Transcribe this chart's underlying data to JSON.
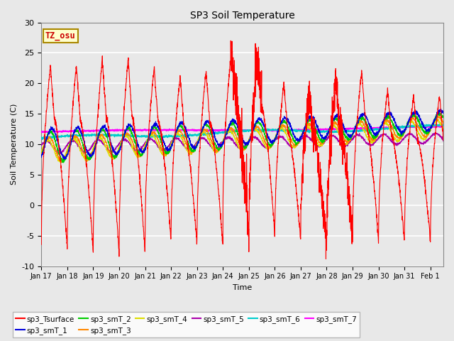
{
  "title": "SP3 Soil Temperature",
  "ylabel": "Soil Temperature (C)",
  "xlabel": "Time",
  "ylim": [
    -10,
    30
  ],
  "yticks": [
    -10,
    -5,
    0,
    5,
    10,
    15,
    20,
    25,
    30
  ],
  "xtick_labels": [
    "Jan 17",
    "Jan 18",
    "Jan 19",
    "Jan 20",
    "Jan 21",
    "Jan 22",
    "Jan 23",
    "Jan 24",
    "Jan 25",
    "Jan 26",
    "Jan 27",
    "Jan 28",
    "Jan 29",
    "Jan 30",
    "Jan 31",
    "Feb 1"
  ],
  "annotation_text": "TZ_osu",
  "annotation_color": "#cc0000",
  "annotation_bg": "#ffffcc",
  "annotation_border": "#aa8800",
  "series_colors": {
    "sp3_Tsurface": "#ff0000",
    "sp3_smT_1": "#0000dd",
    "sp3_smT_2": "#00cc00",
    "sp3_smT_3": "#ff8800",
    "sp3_smT_4": "#dddd00",
    "sp3_smT_5": "#aa00aa",
    "sp3_smT_6": "#00cccc",
    "sp3_smT_7": "#ff00ff"
  },
  "plot_bg": "#e8e8e8",
  "grid_color": "#ffffff",
  "fig_bg": "#e8e8e8"
}
